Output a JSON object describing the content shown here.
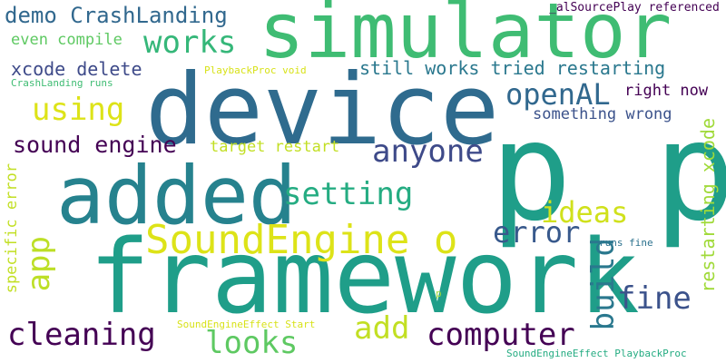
{
  "colors": {
    "background": "#ffffff",
    "palette": [
      "#440154",
      "#3b528b",
      "#21918c",
      "#5ec962",
      "#fde725"
    ]
  },
  "words": {
    "simulator": {
      "text": "simulator",
      "color": "#3fbc73"
    },
    "device": {
      "text": "device",
      "color": "#2f6b8e"
    },
    "p_big": {
      "text": "p p",
      "color": "#1f9e89"
    },
    "added": {
      "text": "added",
      "color": "#26828e"
    },
    "framework": {
      "text": "framework",
      "color": "#1f9e89"
    },
    "soundengine_o": {
      "text": "SoundEngine o",
      "color": "#dde318"
    },
    "demo_crashlanding": {
      "text": "demo CrashLanding",
      "color": "#31688e"
    },
    "al_source_play": {
      "text": "_alSourcePlay referenced",
      "color": "#440154"
    },
    "works": {
      "text": "works",
      "color": "#35b779"
    },
    "even_compile": {
      "text": "even compile",
      "color": "#5ec962"
    },
    "xcode_delete": {
      "text": "xcode delete",
      "color": "#3e4a89"
    },
    "playbackproc_void": {
      "text": "PlaybackProc void",
      "color": "#d8e219"
    },
    "crashlanding_runs": {
      "text": "CrashLanding runs",
      "color": "#3fbc73"
    },
    "still_works": {
      "text": "still works tried restarting",
      "color": "#2a788e"
    },
    "openal": {
      "text": "openAL",
      "color": "#31688e"
    },
    "right_now": {
      "text": "right now",
      "color": "#440154"
    },
    "using": {
      "text": "using",
      "color": "#dde318"
    },
    "something_wrong": {
      "text": "something wrong",
      "color": "#3b528b"
    },
    "restarting_xcode": {
      "text": "restarting xcode",
      "color": "#a0da39"
    },
    "sound_engine": {
      "text": "sound engine",
      "color": "#440154"
    },
    "target_restart": {
      "text": "target restart",
      "color": "#c2df23"
    },
    "anyone": {
      "text": "anyone",
      "color": "#3e4a89"
    },
    "setting": {
      "text": "setting",
      "color": "#25ac82"
    },
    "ideas": {
      "text": "ideas",
      "color": "#d0e11c"
    },
    "error": {
      "text": "error",
      "color": "#38598c"
    },
    "specific_error": {
      "text": "specific error",
      "color": "#c2df23"
    },
    "app": {
      "text": "app",
      "color": "#bddf26"
    },
    "build": {
      "text": "build",
      "color": "#2a788e"
    },
    "fine": {
      "text": "fine",
      "color": "#3b528b"
    },
    "runs_fine": {
      "text": "runs fine",
      "color": "#2c728e"
    },
    "p_small": {
      "text": "p",
      "color": "#a0da39"
    },
    "cleaning": {
      "text": "cleaning",
      "color": "#440154"
    },
    "add": {
      "text": "add",
      "color": "#c2df23"
    },
    "looks": {
      "text": "looks",
      "color": "#5ec962"
    },
    "computer": {
      "text": "computer",
      "color": "#440154"
    },
    "soundengineeffect_start": {
      "text": "SoundEngineEffect Start",
      "color": "#d8e219"
    },
    "soundengineeffect_playbackproc": {
      "text": "SoundEngineEffect PlaybackProc",
      "color": "#25ac82"
    }
  }
}
